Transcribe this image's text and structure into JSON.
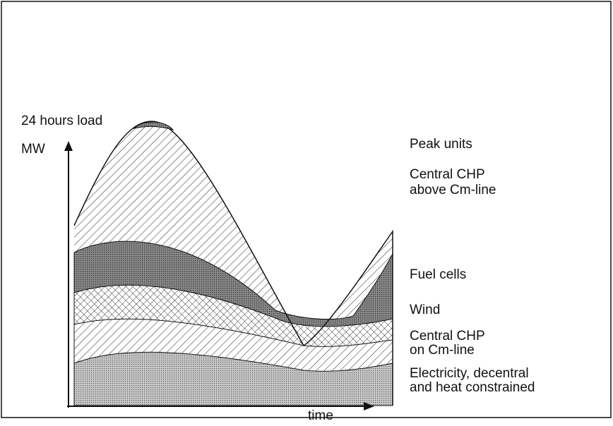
{
  "y_axis": {
    "title": "24 hours load",
    "unit": "MW"
  },
  "x_axis": {
    "label": "time"
  },
  "layers": [
    {
      "lines": [
        "Peak units"
      ]
    },
    {
      "lines": [
        "Central CHP",
        "above Cm-line"
      ]
    },
    {
      "lines": [
        "Fuel cells"
      ]
    },
    {
      "lines": [
        "Wind"
      ]
    },
    {
      "lines": [
        "Central CHP",
        "on Cm-line"
      ]
    },
    {
      "lines": [
        "Electricity, decentral",
        "and heat constrained"
      ]
    }
  ]
}
